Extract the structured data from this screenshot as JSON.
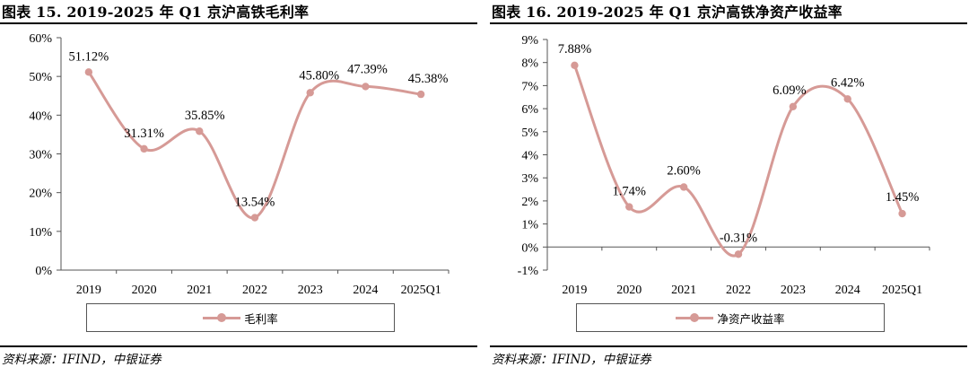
{
  "figures": [
    {
      "title": "图表 15. 2019-2025 年 Q1 京沪高铁毛利率",
      "source": "资料来源：IFIND，中银证券"
    },
    {
      "title": "图表 16. 2019-2025 年 Q1 京沪高铁净资产收益率",
      "source": "资料来源：IFIND，中银证券"
    }
  ],
  "chart_data": [
    {
      "type": "line",
      "smooth": true,
      "categories": [
        "2019",
        "2020",
        "2021",
        "2022",
        "2023",
        "2024",
        "2025Q1"
      ],
      "series": [
        {
          "name": "毛利率",
          "values": [
            51.12,
            31.31,
            35.85,
            13.54,
            45.8,
            47.39,
            45.38
          ]
        }
      ],
      "data_labels": [
        "51.12%",
        "31.31%",
        "35.85%",
        "13.54%",
        "45.80%",
        "47.39%",
        "45.38%"
      ],
      "y_ticks": [
        0,
        10,
        20,
        30,
        40,
        50,
        60
      ],
      "y_tick_labels": [
        "0%",
        "10%",
        "20%",
        "30%",
        "40%",
        "50%",
        "60%"
      ],
      "ylim": [
        0,
        60
      ],
      "grid": false,
      "legend_position": "bottom",
      "color": "#d69a96"
    },
    {
      "type": "line",
      "smooth": true,
      "categories": [
        "2019",
        "2020",
        "2021",
        "2022",
        "2023",
        "2024",
        "2025Q1"
      ],
      "series": [
        {
          "name": "净资产收益率",
          "values": [
            7.88,
            1.74,
            2.6,
            -0.31,
            6.09,
            6.42,
            1.45
          ]
        }
      ],
      "data_labels": [
        "7.88%",
        "1.74%",
        "2.60%",
        "-0.31%",
        "6.09%",
        "6.42%",
        "1.45%"
      ],
      "y_ticks": [
        -1,
        0,
        1,
        2,
        3,
        4,
        5,
        6,
        7,
        8,
        9
      ],
      "y_tick_labels": [
        "-1%",
        "0%",
        "1%",
        "2%",
        "3%",
        "4%",
        "5%",
        "6%",
        "7%",
        "8%",
        "9%"
      ],
      "ylim": [
        -1,
        9
      ],
      "grid": false,
      "legend_position": "bottom",
      "color": "#d69a96"
    }
  ]
}
